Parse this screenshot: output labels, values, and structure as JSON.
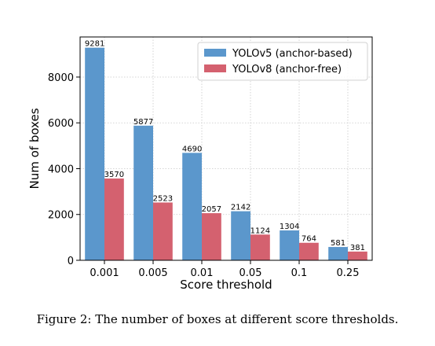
{
  "chart_data": {
    "type": "bar",
    "categories": [
      "0.001",
      "0.005",
      "0.01",
      "0.05",
      "0.1",
      "0.25"
    ],
    "series": [
      {
        "name": "YOLOv5 (anchor-based)",
        "values": [
          9281,
          5877,
          4690,
          2142,
          1304,
          581
        ],
        "color": "#5b97cc"
      },
      {
        "name": "YOLOv8 (anchor-free)",
        "values": [
          3570,
          2523,
          2057,
          1124,
          764,
          381
        ],
        "color": "#d4616f"
      }
    ],
    "data_labels": true,
    "xlabel": "Score threshold",
    "ylabel": "Num of boxes",
    "ylim": [
      0,
      9750
    ],
    "yticks": [
      0,
      2000,
      4000,
      6000,
      8000
    ],
    "grid": true,
    "legend_position": "top-right"
  },
  "caption": "Figure 2: The number of boxes at different score thresholds."
}
